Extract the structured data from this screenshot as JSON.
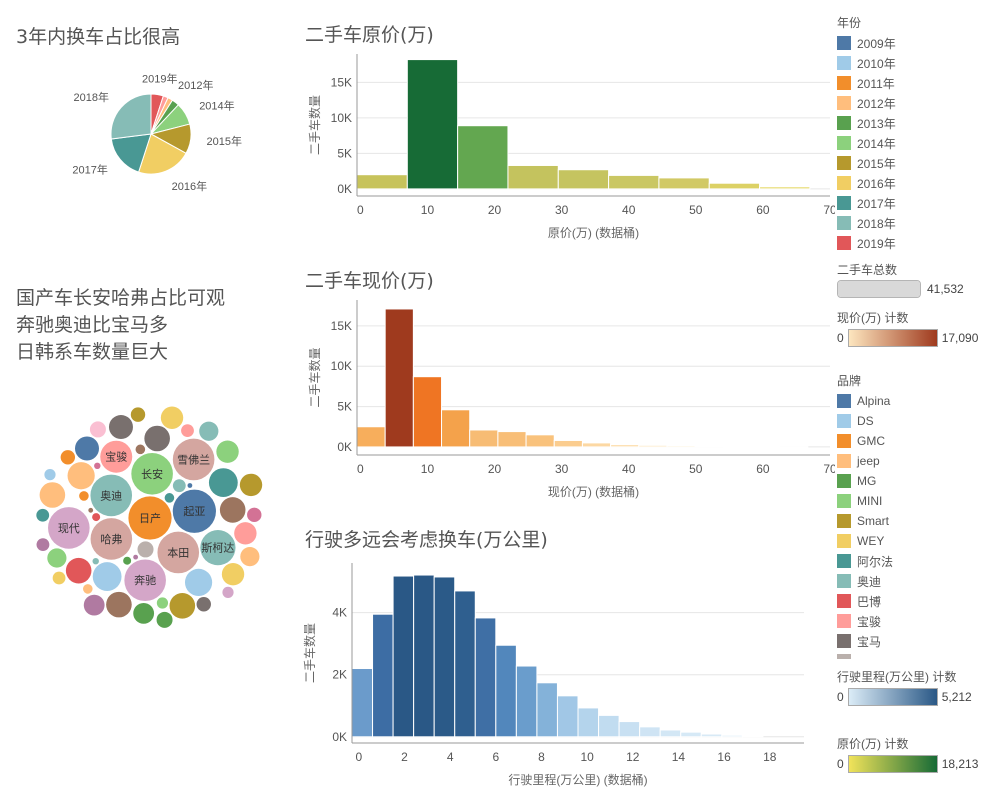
{
  "titles": {
    "pie_heading": "3年内换车占比很高",
    "bubble_heading_lines": [
      "国产车长安哈弗占比可观",
      "奔驰奥迪比宝马多",
      "日韩系车数量巨大"
    ]
  },
  "colors": {
    "axis": "#999999",
    "grid": "#e6e6e6",
    "text": "#555555",
    "bar_edge": "#ffffff"
  },
  "chart_data": [
    {
      "id": "year_pie",
      "type": "pie",
      "title": "",
      "start_angle_deg": 0,
      "slices": [
        {
          "label": "2019年",
          "value": 5,
          "color": "#e15759"
        },
        {
          "label": "",
          "value": 2,
          "color": "#ff9d9a"
        },
        {
          "label": "2012年",
          "value": 2,
          "color": "#ffbe7d"
        },
        {
          "label": "",
          "value": 3,
          "color": "#59a14f"
        },
        {
          "label": "2014年",
          "value": 9,
          "color": "#8cd17d"
        },
        {
          "label": "2015年",
          "value": 12,
          "color": "#b6992d"
        },
        {
          "label": "2016年",
          "value": 22,
          "color": "#f1ce63"
        },
        {
          "label": "2017年",
          "value": 18,
          "color": "#499894"
        },
        {
          "label": "2018年",
          "value": 27,
          "color": "#86bcb6"
        }
      ]
    },
    {
      "id": "original_price_hist",
      "type": "bar",
      "title": "二手车原价(万)",
      "xlabel": "原价(万) (数据桶)",
      "ylabel": "二手车数量",
      "bin_width": 7.5,
      "x_start": -0.5,
      "xlim": [
        -0.5,
        70
      ],
      "ylim": [
        -1000,
        19000
      ],
      "x_ticks": [
        0,
        10,
        20,
        30,
        40,
        50,
        60,
        70
      ],
      "y_ticks": [
        {
          "value": 0,
          "label": "0K"
        },
        {
          "value": 5000,
          "label": "5K"
        },
        {
          "value": 10000,
          "label": "10K"
        },
        {
          "value": 15000,
          "label": "15K"
        }
      ],
      "values": [
        2000,
        18213,
        8900,
        3300,
        2700,
        1900,
        1550,
        800,
        300
      ],
      "colors": [
        "#c7c35b",
        "#176b36",
        "#63a750",
        "#c4c35e",
        "#c5c460",
        "#cac763",
        "#d1c965",
        "#dcd165",
        "#e6d96c"
      ]
    },
    {
      "id": "current_price_hist",
      "type": "bar",
      "title": "二手车现价(万)",
      "xlabel": "现价(万) (数据桶)",
      "ylabel": "二手车数量",
      "bin_width": 4.2,
      "x_start": -0.5,
      "xlim": [
        -0.5,
        70
      ],
      "ylim": [
        -1000,
        18200
      ],
      "x_ticks": [
        0,
        10,
        20,
        30,
        40,
        50,
        60,
        70
      ],
      "y_ticks": [
        {
          "value": 0,
          "label": "0K"
        },
        {
          "value": 5000,
          "label": "5K"
        },
        {
          "value": 10000,
          "label": "10K"
        },
        {
          "value": 15000,
          "label": "15K"
        }
      ],
      "values": [
        2500,
        17090,
        8700,
        4600,
        2100,
        1900,
        1500,
        800,
        500,
        300,
        200,
        150,
        100,
        50,
        50,
        20
      ],
      "colors": [
        "#f7ae5c",
        "#9f3a1e",
        "#ef7523",
        "#f4a24b",
        "#f7bc74",
        "#f8be77",
        "#f9c27c",
        "#fbcd8f",
        "#fcd8a3",
        "#fde1b5",
        "#fde4bb",
        "#fde4bb",
        "#fde6bf",
        "#fde6bf",
        "#fde6bf",
        "#fde6bf"
      ]
    },
    {
      "id": "mileage_hist",
      "type": "bar",
      "title": "行驶多远会考虑换车(万公里)",
      "xlabel": "行驶里程(万公里) (数据桶)",
      "ylabel": "二手车数量",
      "bin_width": 0.9,
      "x_start": -0.3,
      "xlim": [
        -0.3,
        19.5
      ],
      "ylim": [
        -200,
        5600
      ],
      "x_ticks": [
        0,
        2,
        4,
        6,
        8,
        10,
        12,
        14,
        16,
        18
      ],
      "y_ticks": [
        {
          "value": 0,
          "label": "0K"
        },
        {
          "value": 2000,
          "label": "2K"
        },
        {
          "value": 4000,
          "label": "4K"
        }
      ],
      "values": [
        2200,
        3950,
        5180,
        5212,
        5150,
        4700,
        3830,
        2950,
        2280,
        1740,
        1320,
        930,
        690,
        490,
        320,
        220,
        150,
        90,
        50,
        30
      ],
      "colors": [
        "#6b9bcb",
        "#3d6da4",
        "#2a5886",
        "#2a5886",
        "#2b5a88",
        "#2f5f8f",
        "#3f6fa5",
        "#5287bc",
        "#6a9dcc",
        "#84b2d9",
        "#a1c7e6",
        "#b4d4ec",
        "#c1dcf0",
        "#c8e0f2",
        "#cfe4f4",
        "#d3e7f5",
        "#d6e9f6",
        "#d8eaf6",
        "#d9ebf7",
        "#dbecf7"
      ]
    },
    {
      "id": "brand_bubbles",
      "type": "scatter",
      "title": "",
      "note": "packed bubble chart of car brands; size = count",
      "bubbles": [
        {
          "label": "日产",
          "value": 27,
          "color": "#f28e2b"
        },
        {
          "label": "起亚",
          "value": 27,
          "color": "#4e79a7"
        },
        {
          "label": "斯柯达",
          "value": 22,
          "color": "#86bcb6"
        },
        {
          "label": "哈弗",
          "value": 26,
          "color": "#d4a6a0"
        },
        {
          "label": "宝骏",
          "value": 20,
          "color": "#ff9d9a"
        },
        {
          "label": "奥迪",
          "value": 26,
          "color": "#86bcb6"
        },
        {
          "label": "本田",
          "value": 26,
          "color": "#d4a6a0"
        },
        {
          "label": "长安",
          "value": 26,
          "color": "#8cd17d"
        },
        {
          "label": "奔驰",
          "value": 26,
          "color": "#d4a6c8"
        },
        {
          "label": "雪佛兰",
          "value": 26,
          "color": "#d4a6a0"
        },
        {
          "label": "现代",
          "value": 26,
          "color": "#d4a6c8"
        },
        {
          "label": "",
          "value": 17,
          "color": "#ffbe7d"
        },
        {
          "label": "",
          "value": 12,
          "color": "#8cd17d"
        },
        {
          "label": "",
          "value": 17,
          "color": "#a0cbe8"
        },
        {
          "label": "",
          "value": 16,
          "color": "#9c755f"
        },
        {
          "label": "",
          "value": 16,
          "color": "#79706e"
        },
        {
          "label": "",
          "value": 15,
          "color": "#4e79a7"
        },
        {
          "label": "",
          "value": 16,
          "color": "#e15759"
        },
        {
          "label": "",
          "value": 14,
          "color": "#ff9d9a"
        },
        {
          "label": "",
          "value": 18,
          "color": "#a0cbe8"
        },
        {
          "label": "",
          "value": 18,
          "color": "#499894"
        },
        {
          "label": "",
          "value": 16,
          "color": "#9c755f"
        },
        {
          "label": "",
          "value": 16,
          "color": "#b6992d"
        },
        {
          "label": "",
          "value": 14,
          "color": "#f1ce63"
        },
        {
          "label": "",
          "value": 16,
          "color": "#ffbe7d"
        },
        {
          "label": "",
          "value": 13,
          "color": "#59a14f"
        },
        {
          "label": "",
          "value": 15,
          "color": "#79706e"
        },
        {
          "label": "",
          "value": 14,
          "color": "#8cd17d"
        },
        {
          "label": "",
          "value": 14,
          "color": "#b6992d"
        },
        {
          "label": "",
          "value": 13,
          "color": "#b07aa1"
        },
        {
          "label": "",
          "value": 14,
          "color": "#f1ce63"
        },
        {
          "label": "",
          "value": 12,
          "color": "#ffbe7d"
        },
        {
          "label": "",
          "value": 12,
          "color": "#86bcb6"
        },
        {
          "label": "",
          "value": 10,
          "color": "#bab0ac"
        },
        {
          "label": "",
          "value": 10,
          "color": "#fabfd2"
        },
        {
          "label": "",
          "value": 10,
          "color": "#59a14f"
        },
        {
          "label": "",
          "value": 9,
          "color": "#f28e2b"
        },
        {
          "label": "",
          "value": 9,
          "color": "#d37295"
        },
        {
          "label": "",
          "value": 9,
          "color": "#79706e"
        },
        {
          "label": "",
          "value": 9,
          "color": "#b6992d"
        },
        {
          "label": "",
          "value": 8,
          "color": "#86bcb6"
        },
        {
          "label": "",
          "value": 8,
          "color": "#ff9d9a"
        },
        {
          "label": "",
          "value": 8,
          "color": "#499894"
        },
        {
          "label": "",
          "value": 8,
          "color": "#f1ce63"
        },
        {
          "label": "",
          "value": 8,
          "color": "#b07aa1"
        },
        {
          "label": "",
          "value": 7,
          "color": "#8cd17d"
        },
        {
          "label": "",
          "value": 7,
          "color": "#a0cbe8"
        },
        {
          "label": "",
          "value": 7,
          "color": "#d4a6c8"
        },
        {
          "label": "",
          "value": 6,
          "color": "#499894"
        },
        {
          "label": "",
          "value": 6,
          "color": "#f28e2b"
        },
        {
          "label": "",
          "value": 6,
          "color": "#9d7660"
        },
        {
          "label": "",
          "value": 6,
          "color": "#ffbe7d"
        },
        {
          "label": "",
          "value": 5,
          "color": "#59a14f"
        },
        {
          "label": "",
          "value": 5,
          "color": "#e15759"
        },
        {
          "label": "",
          "value": 4,
          "color": "#86bcb6"
        },
        {
          "label": "",
          "value": 4,
          "color": "#d37295"
        },
        {
          "label": "",
          "value": 3,
          "color": "#b07aa1"
        },
        {
          "label": "",
          "value": 3,
          "color": "#4e79a7"
        },
        {
          "label": "",
          "value": 3,
          "color": "#9d7660"
        }
      ]
    }
  ],
  "legends": {
    "year": {
      "title": "年份",
      "items": [
        {
          "label": "2009年",
          "color": "#4e79a7"
        },
        {
          "label": "2010年",
          "color": "#a0cbe8"
        },
        {
          "label": "2011年",
          "color": "#f28e2b"
        },
        {
          "label": "2012年",
          "color": "#ffbe7d"
        },
        {
          "label": "2013年",
          "color": "#59a14f"
        },
        {
          "label": "2014年",
          "color": "#8cd17d"
        },
        {
          "label": "2015年",
          "color": "#b6992d"
        },
        {
          "label": "2016年",
          "color": "#f1ce63"
        },
        {
          "label": "2017年",
          "color": "#499894"
        },
        {
          "label": "2018年",
          "color": "#86bcb6"
        },
        {
          "label": "2019年",
          "color": "#e15759"
        }
      ]
    },
    "total": {
      "title": "二手车总数",
      "value": "41,532",
      "progress": 1.0
    },
    "current_price_count": {
      "title": "现价(万) 计数",
      "min": "0",
      "max": "17,090",
      "color_from": "#fde6bf",
      "color_to": "#9f3a1e"
    },
    "brand": {
      "title": "品牌",
      "items": [
        {
          "label": "Alpina",
          "color": "#4e79a7"
        },
        {
          "label": "DS",
          "color": "#a0cbe8"
        },
        {
          "label": "GMC",
          "color": "#f28e2b"
        },
        {
          "label": "jeep",
          "color": "#ffbe7d"
        },
        {
          "label": "MG",
          "color": "#59a14f"
        },
        {
          "label": "MINI",
          "color": "#8cd17d"
        },
        {
          "label": "Smart",
          "color": "#b6992d"
        },
        {
          "label": "WEY",
          "color": "#f1ce63"
        },
        {
          "label": "阿尔法",
          "color": "#499894"
        },
        {
          "label": "奥迪",
          "color": "#86bcb6"
        },
        {
          "label": "巴博",
          "color": "#e15759"
        },
        {
          "label": "宝骏",
          "color": "#ff9d9a"
        },
        {
          "label": "宝马",
          "color": "#79706e"
        },
        {
          "label": "",
          "color": "#bab0ac"
        }
      ]
    },
    "mileage_count": {
      "title": "行驶里程(万公里) 计数",
      "min": "0",
      "max": "5,212",
      "color_from": "#dbecf7",
      "color_to": "#2a5886"
    },
    "original_price_count": {
      "title": "原价(万) 计数",
      "min": "0",
      "max": "18,213",
      "color_from": "#f1e35a",
      "color_to": "#176b36"
    }
  }
}
